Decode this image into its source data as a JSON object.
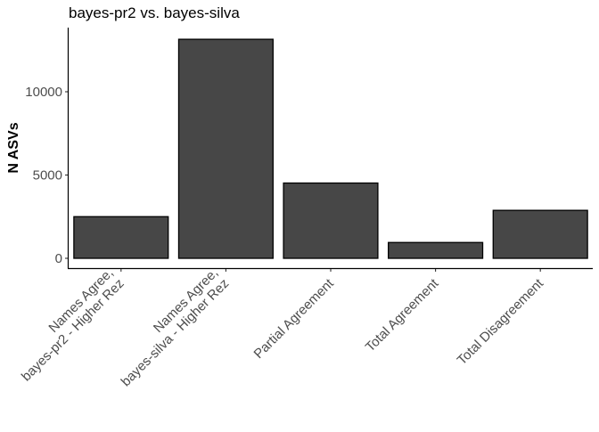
{
  "chart_data": {
    "type": "bar",
    "title": "bayes-pr2 vs. bayes-silva",
    "xlabel": "",
    "ylabel": "N ASVs",
    "categories": [
      [
        "Names Agree,",
        "bayes-pr2 - Higher Rez"
      ],
      [
        "Names Agree,",
        "bayes-silva - Higher Rez"
      ],
      [
        "Partial Agreement"
      ],
      [
        "Total Agreement"
      ],
      [
        "Total Disagreement"
      ]
    ],
    "values": [
      2500,
      13150,
      4520,
      950,
      2880
    ],
    "yticks": [
      0,
      5000,
      10000
    ],
    "ylim": [
      -600,
      13800
    ],
    "grid": false,
    "legend": "none",
    "bar_fill": "#474747",
    "bar_stroke": "#000000"
  }
}
